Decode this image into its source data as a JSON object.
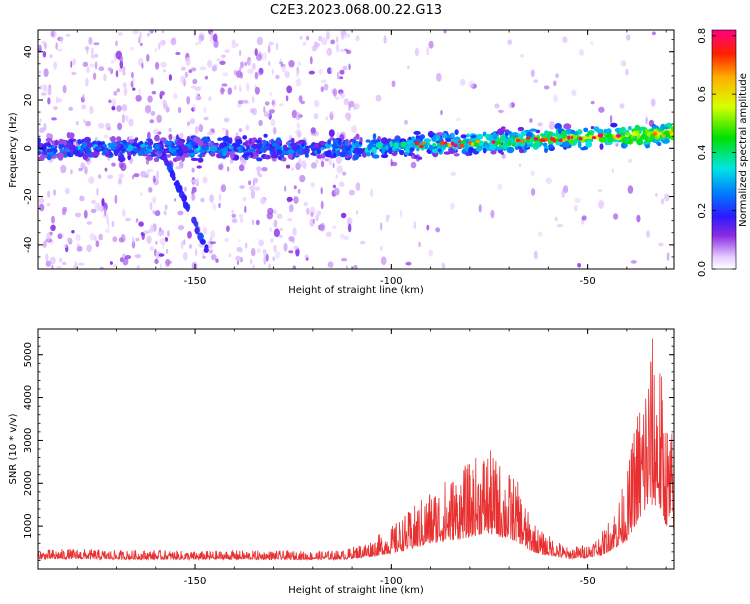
{
  "title": "C2E3.2023.068.00.22.G13",
  "chart_data": [
    {
      "type": "heatmap",
      "xlabel": "Height of straight line (km)",
      "ylabel": "Frequency (Hz)",
      "xlim": [
        -190,
        -28
      ],
      "ylim": [
        -50,
        49
      ],
      "xticks": [
        -150,
        -100,
        -50
      ],
      "yticks": [
        -40,
        -20,
        0,
        20,
        40
      ],
      "colorbar": {
        "label": "Normalized spectral amplitude",
        "range": [
          0.0,
          0.82
        ],
        "ticks": [
          0.0,
          0.2,
          0.4,
          0.6,
          0.8
        ],
        "colormap": "rainbow"
      },
      "features": [
        {
          "name": "central band",
          "x_start": -190,
          "x_end": -28,
          "y_start": -4,
          "y_end": 6
        },
        {
          "name": "diagonal streak",
          "x_start": -160,
          "x_end": -147,
          "y_start": 5,
          "y_end": -42
        }
      ]
    },
    {
      "type": "line",
      "xlabel": "Height of straight line (km)",
      "ylabel": "SNR (10 * v/v)",
      "xlim": [
        -190,
        -28
      ],
      "ylim": [
        0,
        5600
      ],
      "xticks": [
        -150,
        -100,
        -50
      ],
      "yticks": [
        1000,
        2000,
        3000,
        4000,
        5000
      ],
      "color": "#e83030",
      "envelope": {
        "x": [
          -190,
          -180,
          -170,
          -160,
          -150,
          -140,
          -130,
          -120,
          -112,
          -105,
          -100,
          -95,
          -90,
          -85,
          -80,
          -76,
          -72,
          -68,
          -65,
          -62,
          -58,
          -55,
          -50,
          -46,
          -43,
          -40,
          -38,
          -36,
          -34,
          -32,
          -30,
          -28
        ],
        "y": [
          450,
          480,
          440,
          450,
          420,
          440,
          430,
          420,
          450,
          700,
          1000,
          1400,
          1900,
          2200,
          2500,
          2900,
          2500,
          2100,
          1300,
          900,
          700,
          500,
          600,
          900,
          1500,
          2200,
          3500,
          4500,
          5500,
          5400,
          3600,
          3200
        ]
      }
    }
  ]
}
